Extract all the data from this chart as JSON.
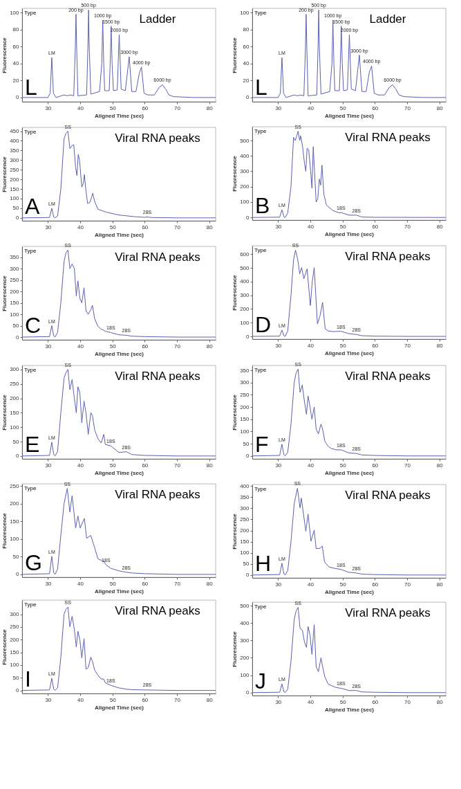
{
  "chart_data": [
    {
      "type": "line",
      "xlabel": "Aligned Time (sec)",
      "ylabel": "Fluorescence",
      "xlim": [
        22,
        82
      ],
      "xticks": [
        30,
        40,
        50,
        60,
        70,
        80
      ],
      "ylim": [
        -5,
        105
      ],
      "yticks": [
        0,
        20,
        40,
        60,
        80,
        100
      ],
      "x": [
        22,
        30,
        30.7,
        31.2,
        31.7,
        32.5,
        35,
        36,
        37,
        38,
        38.5,
        38.7,
        38.9,
        39.3,
        42,
        42.4,
        42.6,
        42.8,
        43.3,
        46,
        46.7,
        47,
        47.3,
        47.6,
        49,
        49.3,
        49.6,
        49.9,
        50.3,
        51.5,
        52.1,
        52.7,
        54,
        55.2,
        56,
        57.3,
        58.3,
        59,
        59.8,
        61,
        63,
        64.5,
        65.5,
        66.5,
        67.5,
        69,
        75,
        82
      ],
      "series": [
        {
          "color": "#5b5fb0",
          "values": [
            0,
            0,
            5,
            47,
            5,
            0,
            3,
            2,
            3,
            2,
            60,
            98,
            60,
            2,
            3,
            60,
            103,
            60,
            4,
            7,
            40,
            91,
            40,
            8,
            8,
            40,
            84,
            40,
            8,
            9,
            74,
            10,
            8,
            48,
            7,
            7,
            28,
            36,
            5,
            3,
            3,
            12,
            15,
            10,
            3,
            1,
            0,
            0
          ]
        }
      ],
      "annotations": [
        "L",
        "Type",
        "Ladder",
        {
          "text": "LM",
          "x": 31.2,
          "y": 47
        },
        {
          "text": "200 bp",
          "x": 38.7,
          "y": 98
        },
        {
          "text": "500 bp",
          "x": 42.6,
          "y": 103
        },
        {
          "text": "1000 bp",
          "x": 47,
          "y": 91
        },
        {
          "text": "1500 bp",
          "x": 49.6,
          "y": 84
        },
        {
          "text": "2000 bp",
          "x": 52.1,
          "y": 74
        },
        {
          "text": "3000 bp",
          "x": 55.2,
          "y": 48
        },
        {
          "text": "4000 bp",
          "x": 59,
          "y": 36
        },
        {
          "text": "6000 bp",
          "x": 65.5,
          "y": 15
        }
      ]
    },
    {
      "type": "line",
      "xlabel": "Aligned Time (sec)",
      "ylabel": "Fluorescence",
      "xlim": [
        22,
        82
      ],
      "xticks": [
        30,
        40,
        50,
        60,
        70,
        80
      ],
      "ylim": [
        -5,
        105
      ],
      "yticks": [
        0,
        20,
        40,
        60,
        80,
        100
      ],
      "x": [
        22,
        30,
        30.7,
        31.2,
        31.7,
        32.5,
        35,
        36,
        37,
        38,
        38.5,
        38.7,
        38.9,
        39.3,
        42,
        42.4,
        42.6,
        42.8,
        43.3,
        46,
        46.7,
        47,
        47.3,
        47.6,
        49,
        49.3,
        49.6,
        49.9,
        50.3,
        51.5,
        52.1,
        52.7,
        54,
        55.2,
        56,
        57.3,
        58.3,
        59,
        59.8,
        61,
        63,
        64.5,
        65.5,
        66.5,
        67.5,
        69,
        75,
        82
      ],
      "series": [
        {
          "color": "#5b5fb0",
          "values": [
            0,
            0,
            5,
            47,
            5,
            0,
            3,
            2,
            3,
            2,
            60,
            98,
            60,
            2,
            3,
            60,
            103,
            60,
            4,
            7,
            40,
            91,
            40,
            8,
            8,
            40,
            84,
            40,
            8,
            9,
            74,
            10,
            8,
            50,
            7,
            7,
            30,
            37,
            5,
            3,
            3,
            12,
            15,
            10,
            3,
            1,
            0,
            0
          ]
        }
      ],
      "annotations": [
        "L",
        "Type",
        "Ladder",
        {
          "text": "LM",
          "x": 31.2,
          "y": 47
        },
        {
          "text": "200 bp",
          "x": 38.7,
          "y": 98
        },
        {
          "text": "500 bp",
          "x": 42.6,
          "y": 103
        },
        {
          "text": "1000 bp",
          "x": 47,
          "y": 91
        },
        {
          "text": "1500 bp",
          "x": 49.6,
          "y": 84
        },
        {
          "text": "2000 bp",
          "x": 52.1,
          "y": 74
        },
        {
          "text": "3000 bp",
          "x": 55.2,
          "y": 50
        },
        {
          "text": "4000 bp",
          "x": 59,
          "y": 37
        },
        {
          "text": "6000 bp",
          "x": 65.5,
          "y": 15
        }
      ]
    },
    {
      "type": "line",
      "xlabel": "Aligned Time (sec)",
      "ylabel": "Fluorescence",
      "xlim": [
        22,
        82
      ],
      "xticks": [
        30,
        40,
        50,
        60,
        70,
        80
      ],
      "ylim": [
        -15,
        470
      ],
      "yticks": [
        0,
        50,
        100,
        150,
        200,
        250,
        300,
        350,
        400,
        450
      ],
      "x": [
        22,
        30.5,
        31.2,
        31.8,
        32.2,
        33,
        34,
        35,
        35.6,
        36.2,
        36.8,
        37.5,
        38,
        38.6,
        39,
        39.4,
        39.8,
        40.5,
        41,
        41.3,
        41.8,
        42.3,
        43,
        43.6,
        43.9,
        44.5,
        45.5,
        48,
        52,
        57,
        60,
        60.8,
        62,
        70,
        82
      ],
      "series": [
        {
          "color": "#5b5fb0",
          "values": [
            0,
            2,
            50,
            5,
            0,
            10,
            150,
            410,
            440,
            450,
            360,
            375,
            380,
            260,
            220,
            330,
            300,
            160,
            180,
            225,
            140,
            75,
            80,
            110,
            128,
            85,
            45,
            30,
            15,
            6,
            3,
            5,
            2,
            0,
            0
          ]
        }
      ],
      "annotations": [
        "A",
        "Type",
        "Viral RNA peaks",
        {
          "text": "LM",
          "x": 31.2,
          "y": 50
        },
        {
          "text": "SS",
          "x": 36.2,
          "y": 450
        },
        {
          "text": "28S",
          "x": 60.8,
          "y": 5
        }
      ]
    },
    {
      "type": "line",
      "xlabel": "Aligned Time (sec)",
      "ylabel": "Fluorescence",
      "xlim": [
        22,
        82
      ],
      "xticks": [
        30,
        40,
        50,
        60,
        70,
        80
      ],
      "ylim": [
        -17,
        590
      ],
      "yticks": [
        0,
        100,
        200,
        300,
        400,
        500
      ],
      "x": [
        22,
        30.5,
        31.2,
        31.8,
        32.2,
        33,
        34,
        34.8,
        35.3,
        35.8,
        36.2,
        36.7,
        37,
        37.6,
        38.2,
        38.6,
        39,
        39.5,
        40.1,
        40.5,
        40.9,
        41.3,
        41.8,
        42.3,
        42.8,
        43.2,
        43.6,
        44.2,
        45,
        47,
        49,
        49.5,
        52,
        54.3,
        56,
        60,
        82
      ],
      "series": [
        {
          "color": "#5b5fb0",
          "values": [
            0,
            2,
            50,
            5,
            0,
            30,
            200,
            520,
            500,
            530,
            560,
            500,
            530,
            460,
            350,
            300,
            450,
            440,
            300,
            190,
            460,
            300,
            100,
            120,
            250,
            210,
            340,
            150,
            80,
            45,
            30,
            32,
            15,
            15,
            3,
            1,
            0
          ]
        }
      ],
      "annotations": [
        "B",
        "Type",
        "Viral RNA peaks",
        {
          "text": "LM",
          "x": 31.2,
          "y": 50
        },
        {
          "text": "SS",
          "x": 36.2,
          "y": 560
        },
        {
          "text": "18S",
          "x": 49.5,
          "y": 32
        },
        {
          "text": "28S",
          "x": 54.3,
          "y": 15
        }
      ]
    },
    {
      "type": "line",
      "xlabel": "Aligned Time (sec)",
      "ylabel": "Fluorescence",
      "xlim": [
        22,
        82
      ],
      "xticks": [
        30,
        40,
        50,
        60,
        70,
        80
      ],
      "ylim": [
        -12,
        397
      ],
      "yticks": [
        0,
        50,
        100,
        150,
        200,
        250,
        300,
        350
      ],
      "x": [
        22,
        30.5,
        31.2,
        31.8,
        32.2,
        33,
        34,
        35,
        35.6,
        36.2,
        36.8,
        37.5,
        38.2,
        38.8,
        39.3,
        39.9,
        40.5,
        41.2,
        41.8,
        42.5,
        43.3,
        43.8,
        44.5,
        45.5,
        46.5,
        47.3,
        47.8,
        49.5,
        52,
        54.3,
        56,
        60,
        70,
        82
      ],
      "series": [
        {
          "color": "#5b5fb0",
          "values": [
            0,
            2,
            50,
            5,
            0,
            20,
            150,
            330,
            370,
            381,
            300,
            320,
            300,
            180,
            246,
            170,
            150,
            216,
            115,
            100,
            120,
            139,
            80,
            47,
            35,
            30,
            25,
            20,
            10,
            8,
            4,
            2,
            0,
            0
          ]
        }
      ],
      "annotations": [
        "C",
        "Type",
        "Viral RNA peaks",
        {
          "text": "LM",
          "x": 31.2,
          "y": 50
        },
        {
          "text": "SS",
          "x": 36.2,
          "y": 381
        },
        {
          "text": "18S",
          "x": 49.5,
          "y": 20
        },
        {
          "text": "28S",
          "x": 54.3,
          "y": 8
        }
      ]
    },
    {
      "type": "line",
      "xlabel": "Aligned Time (sec)",
      "ylabel": "Fluorescence",
      "xlim": [
        22,
        82
      ],
      "xticks": [
        30,
        40,
        50,
        60,
        70,
        80
      ],
      "ylim": [
        -20,
        662
      ],
      "yticks": [
        0,
        100,
        200,
        300,
        400,
        500,
        600
      ],
      "x": [
        22,
        30.5,
        31.2,
        31.8,
        32.2,
        33,
        34,
        34.8,
        35.4,
        36.1,
        36.7,
        37.3,
        38,
        39,
        40,
        40.6,
        41.2,
        42.2,
        43,
        43.8,
        44.6,
        45.5,
        47,
        49.5,
        52,
        54.3,
        56,
        60,
        70,
        82
      ],
      "series": [
        {
          "color": "#5b5fb0",
          "values": [
            0,
            2,
            46,
            5,
            0,
            40,
            300,
            560,
            630,
            560,
            457,
            502,
            421,
            493,
            225,
            400,
            502,
            91,
            150,
            248,
            55,
            40,
            35,
            37,
            20,
            14,
            5,
            2,
            0,
            0
          ]
        }
      ],
      "annotations": [
        "D",
        "Type",
        "Viral RNA peaks",
        {
          "text": "LM",
          "x": 31.2,
          "y": 46
        },
        {
          "text": "SS",
          "x": 35.4,
          "y": 630
        },
        {
          "text": "18S",
          "x": 49.5,
          "y": 37
        },
        {
          "text": "28S",
          "x": 54.3,
          "y": 14
        }
      ]
    },
    {
      "type": "line",
      "xlabel": "Aligned Time (sec)",
      "ylabel": "Fluorescence",
      "xlim": [
        22,
        82
      ],
      "xticks": [
        30,
        40,
        50,
        60,
        70,
        80
      ],
      "ylim": [
        -10,
        314
      ],
      "yticks": [
        0,
        50,
        100,
        150,
        200,
        250,
        300
      ],
      "x": [
        22,
        30.5,
        31.2,
        31.8,
        32.2,
        33,
        34,
        35,
        35.6,
        36.2,
        36.8,
        37.5,
        38.2,
        38.8,
        39.3,
        39.9,
        40.5,
        41.2,
        41.8,
        42.5,
        43.3,
        43.8,
        44.5,
        45.5,
        46.5,
        47.3,
        47.8,
        49.5,
        52,
        54.3,
        56,
        60,
        70,
        82
      ],
      "series": [
        {
          "color": "#5b5fb0",
          "values": [
            0,
            2,
            48,
            5,
            0,
            15,
            150,
            270,
            290,
            300,
            230,
            265,
            200,
            150,
            240,
            220,
            115,
            190,
            150,
            75,
            150,
            140,
            90,
            60,
            45,
            75,
            40,
            35,
            12,
            15,
            5,
            2,
            0,
            0
          ]
        }
      ],
      "annotations": [
        "E",
        "Type",
        "Viral RNA peaks",
        {
          "text": "LM",
          "x": 31.2,
          "y": 48
        },
        {
          "text": "SS",
          "x": 36.2,
          "y": 300
        },
        {
          "text": "18S",
          "x": 49.5,
          "y": 35
        },
        {
          "text": "28S",
          "x": 54.3,
          "y": 15
        }
      ]
    },
    {
      "type": "line",
      "xlabel": "Aligned Time (sec)",
      "ylabel": "Fluorescence",
      "xlim": [
        22,
        82
      ],
      "xticks": [
        30,
        40,
        50,
        60,
        70,
        80
      ],
      "ylim": [
        -12,
        370
      ],
      "yticks": [
        0,
        50,
        100,
        150,
        200,
        250,
        300,
        350
      ],
      "x": [
        22,
        30.5,
        31.2,
        31.8,
        32.2,
        33,
        34,
        35,
        35.6,
        36.2,
        36.8,
        37.5,
        38.2,
        38.8,
        39.3,
        39.9,
        40.5,
        41.2,
        41.8,
        42.5,
        43.3,
        43.8,
        44.5,
        45.5,
        46.5,
        47.3,
        47.8,
        49.5,
        52,
        54.3,
        56,
        60,
        70,
        82
      ],
      "series": [
        {
          "color": "#5b5fb0",
          "values": [
            0,
            2,
            48,
            5,
            0,
            15,
            130,
            300,
            340,
            355,
            260,
            290,
            220,
            170,
            245,
            200,
            150,
            200,
            110,
            90,
            130,
            110,
            60,
            40,
            30,
            28,
            25,
            25,
            12,
            10,
            4,
            2,
            0,
            0
          ]
        }
      ],
      "annotations": [
        "F",
        "Type",
        "Viral RNA peaks",
        {
          "text": "LM",
          "x": 31.2,
          "y": 48
        },
        {
          "text": "SS",
          "x": 36.2,
          "y": 355
        },
        {
          "text": "18S",
          "x": 49.5,
          "y": 25
        },
        {
          "text": "28S",
          "x": 54.3,
          "y": 10
        }
      ]
    },
    {
      "type": "line",
      "xlabel": "Aligned Time (sec)",
      "ylabel": "Fluorescence",
      "xlim": [
        22,
        82
      ],
      "xticks": [
        30,
        40,
        50,
        60,
        70,
        80
      ],
      "ylim": [
        -8,
        256
      ],
      "yticks": [
        0,
        50,
        100,
        150,
        200,
        250
      ],
      "x": [
        22,
        30.5,
        31.2,
        31.8,
        32.2,
        33,
        34,
        35,
        36,
        36.8,
        37.5,
        38.6,
        39.3,
        40,
        41.3,
        42,
        43.3,
        44.5,
        45.5,
        46.5,
        47.3,
        48,
        49.5,
        52,
        54.3,
        56,
        60,
        70,
        82
      ],
      "series": [
        {
          "color": "#5b5fb0",
          "values": [
            0,
            2,
            51,
            5,
            0,
            15,
            110,
            200,
            243,
            176,
            222,
            131,
            165,
            131,
            158,
            102,
            110,
            75,
            44,
            40,
            37,
            27,
            17,
            10,
            6,
            4,
            2,
            0,
            0
          ]
        }
      ],
      "annotations": [
        "G",
        "Type",
        "Viral RNA peaks",
        {
          "text": "LM",
          "x": 31.2,
          "y": 51
        },
        {
          "text": "SS",
          "x": 36,
          "y": 243
        },
        {
          "text": "18S",
          "x": 48,
          "y": 27
        },
        {
          "text": "28S",
          "x": 54.3,
          "y": 6
        }
      ]
    },
    {
      "type": "line",
      "xlabel": "Aligned Time (sec)",
      "ylabel": "Fluorescence",
      "xlim": [
        22,
        82
      ],
      "xticks": [
        30,
        40,
        50,
        60,
        70,
        80
      ],
      "ylim": [
        -13,
        407
      ],
      "yticks": [
        0,
        50,
        100,
        150,
        200,
        250,
        300,
        350,
        400
      ],
      "x": [
        22,
        30.5,
        31.2,
        31.8,
        32.2,
        33,
        34,
        35,
        36,
        36.8,
        37.2,
        38.6,
        39.3,
        40.2,
        41.2,
        41.8,
        43,
        43.7,
        44.4,
        45.8,
        47.5,
        49.5,
        52,
        54.3,
        56,
        60,
        70,
        82
      ],
      "series": [
        {
          "color": "#5b5fb0",
          "values": [
            0,
            2,
            53,
            5,
            0,
            20,
            150,
            320,
            390,
            302,
            346,
            197,
            274,
            152,
            202,
            119,
            120,
            130,
            59,
            36,
            30,
            25,
            12,
            9,
            4,
            2,
            0,
            0
          ]
        }
      ],
      "annotations": [
        "H",
        "Type",
        "Viral RNA peaks",
        {
          "text": "LM",
          "x": 31.2,
          "y": 53
        },
        {
          "text": "SS",
          "x": 36,
          "y": 390
        },
        {
          "text": "18S",
          "x": 49.5,
          "y": 25
        },
        {
          "text": "28S",
          "x": 54.3,
          "y": 9
        }
      ]
    },
    {
      "type": "line",
      "xlabel": "Aligned Time (sec)",
      "ylabel": "Fluorescence",
      "xlim": [
        22,
        82
      ],
      "xticks": [
        30,
        40,
        50,
        60,
        70,
        80
      ],
      "ylim": [
        -12,
        356
      ],
      "yticks": [
        0,
        50,
        100,
        150,
        200,
        250,
        300
      ],
      "x": [
        22,
        30.5,
        31.2,
        31.8,
        32.2,
        33,
        34,
        35,
        35.6,
        36.2,
        36.8,
        37.5,
        38.2,
        38.8,
        39.3,
        39.9,
        40.5,
        41.2,
        41.8,
        42.5,
        43.3,
        43.8,
        44.5,
        45.5,
        46.5,
        47.3,
        47.8,
        49.5,
        52,
        54.3,
        56,
        60,
        70,
        82
      ],
      "series": [
        {
          "color": "#5b5fb0",
          "values": [
            0,
            2,
            48,
            5,
            0,
            10,
            130,
            300,
            320,
            328,
            251,
            292,
            240,
            171,
            233,
            200,
            128,
            204,
            84,
            90,
            131,
            115,
            80,
            60,
            45,
            45,
            30,
            20,
            10,
            5,
            3,
            2,
            0,
            0
          ]
        }
      ],
      "annotations": [
        "I",
        "Type",
        "Viral RNA peaks",
        {
          "text": "LM",
          "x": 31.2,
          "y": 48
        },
        {
          "text": "SS",
          "x": 36.2,
          "y": 328
        },
        {
          "text": "18S",
          "x": 49.5,
          "y": 20
        },
        {
          "text": "28S",
          "x": 60.8,
          "y": 4
        }
      ]
    },
    {
      "type": "line",
      "xlabel": "Aligned Time (sec)",
      "ylabel": "Fluorescence",
      "xlim": [
        22,
        82
      ],
      "xticks": [
        30,
        40,
        50,
        60,
        70,
        80
      ],
      "ylim": [
        -17,
        520
      ],
      "yticks": [
        0,
        100,
        200,
        300,
        400,
        500
      ],
      "x": [
        22,
        30.5,
        31.2,
        31.8,
        32.2,
        33,
        34,
        35,
        35.6,
        36.2,
        36.8,
        37.5,
        38.2,
        38.8,
        39.3,
        39.9,
        40.5,
        41.2,
        41.8,
        42.5,
        43.3,
        43.8,
        44.5,
        45.5,
        46.5,
        47.3,
        47.8,
        49.5,
        52,
        54.3,
        56,
        60,
        70,
        82
      ],
      "series": [
        {
          "color": "#5b5fb0",
          "values": [
            0,
            2,
            50,
            5,
            0,
            20,
            180,
            420,
            470,
            490,
            370,
            360,
            290,
            260,
            380,
            330,
            220,
            390,
            150,
            120,
            200,
            150,
            90,
            50,
            40,
            35,
            30,
            25,
            12,
            12,
            4,
            2,
            0,
            0
          ]
        }
      ],
      "annotations": [
        "J",
        "Type",
        "Viral RNA peaks",
        {
          "text": "LM",
          "x": 31.2,
          "y": 50
        },
        {
          "text": "SS",
          "x": 36.2,
          "y": 490
        },
        {
          "text": "18S",
          "x": 49.5,
          "y": 25
        },
        {
          "text": "28S",
          "x": 54.3,
          "y": 12
        }
      ]
    }
  ]
}
